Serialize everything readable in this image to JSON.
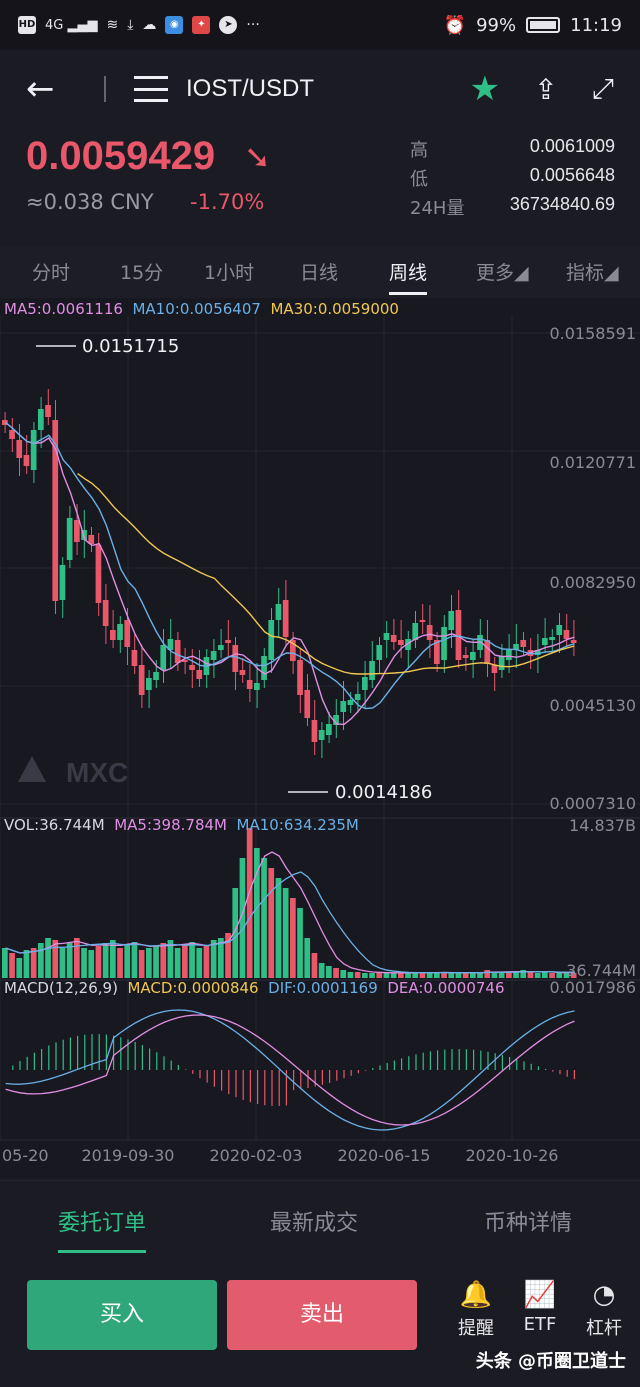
{
  "status_bar": {
    "left_icons": [
      "HD",
      "4G",
      "signal-icon",
      "wifi-icon",
      "download-icon",
      "cloud-icon",
      "app-icon",
      "app-icon",
      "app-icon"
    ],
    "more": "···",
    "battery_pct": "99%",
    "time": "11:19"
  },
  "nav": {
    "back_icon": "←",
    "menu_icon": "menu-icon",
    "pair": "IOST/USDT",
    "star_icon": "★",
    "share_icon": "⇪",
    "fullscreen_icon": "⤢"
  },
  "ticker": {
    "price": "0.0059429",
    "price_arrow": "➘",
    "cny": "≈0.038 CNY",
    "change": "-1.70%",
    "high_label": "高",
    "high": "0.0061009",
    "low_label": "低",
    "low": "0.0056648",
    "vol_label": "24H量",
    "vol": "36734840.69"
  },
  "period_tabs": [
    "分时",
    "15分",
    "1小时",
    "日线",
    "周线",
    "更多◢",
    "指标◢"
  ],
  "active_period": "周线",
  "colors": {
    "up": "#2fbf86",
    "down": "#e8576a",
    "ma5": "#e08fe3",
    "ma10": "#6ab0e6",
    "ma30": "#f0c850"
  },
  "kline": {
    "ma5_label": "MA5:0.0061116",
    "ma10_label": "MA10:0.0056407",
    "ma30_label": "MA30:0.0059000",
    "y_ticks": [
      "0.0158591",
      "0.0120771",
      "0.0082950",
      "0.0045130",
      "0.0007310"
    ],
    "max_marker": "0.0151715",
    "min_marker": "0.0014186",
    "logo_text": "MXC"
  },
  "volume": {
    "vol_label": "VOL:36.744M",
    "ma5_label": "MA5:398.784M",
    "ma10_label": "MA10:634.235M",
    "top_tick": "14.837B",
    "bottom_tick": "36.744M"
  },
  "macd": {
    "title": "MACD(12,26,9)",
    "macd_label": "MACD:0.0000846",
    "dif_label": "DIF:0.0001169",
    "dea_label": "DEA:0.0000746",
    "top_tick": "0.0017986"
  },
  "x_ticks": [
    "05-20",
    "2019-09-30",
    "2020-02-03",
    "2020-06-15",
    "2020-10-26"
  ],
  "bottom_tabs": [
    "委托订单",
    "最新成交",
    "币种详情"
  ],
  "buy_label": "买入",
  "sell_label": "卖出",
  "actions": [
    {
      "icon": "🔔",
      "label": "提醒"
    },
    {
      "icon": "📈",
      "label": "ETF"
    },
    {
      "icon": "◔",
      "label": "杠杆"
    }
  ],
  "watermark": "头条 @币圈卫道士"
}
